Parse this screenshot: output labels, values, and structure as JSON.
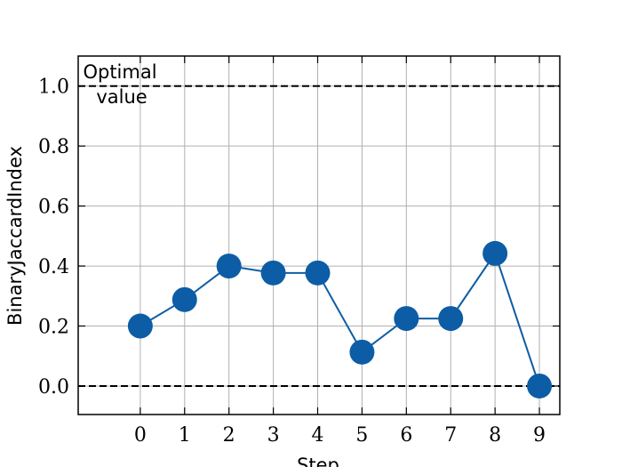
{
  "chart_data": {
    "type": "line",
    "xlabel": "Step",
    "ylabel": "BinaryJaccardIndex",
    "x": [
      0,
      1,
      2,
      3,
      4,
      5,
      6,
      7,
      8,
      9
    ],
    "series": [
      {
        "color": "#0c5da5",
        "values": [
          0.2,
          0.288,
          0.4,
          0.377,
          0.377,
          0.113,
          0.225,
          0.225,
          0.442,
          0.0
        ]
      }
    ],
    "xlim": [
      -1.4,
      9.46
    ],
    "xticks": [
      0,
      1,
      2,
      3,
      4,
      5,
      6,
      7,
      8,
      9
    ],
    "ylim": [
      -0.095,
      1.1
    ],
    "yticks": [
      {
        "value": 0,
        "label": "0.0"
      },
      0.2,
      0.4,
      0.6,
      0.8,
      {
        "value": 1,
        "label": "1.0"
      }
    ],
    "hlines": [
      1,
      0
    ],
    "annotation_lines": [
      "Optimal",
      "value"
    ],
    "grid": true
  }
}
